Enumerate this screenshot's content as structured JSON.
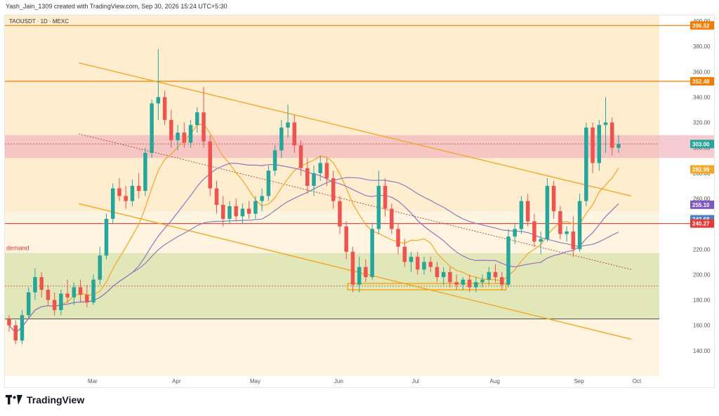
{
  "header": {
    "attribution": "Yash_Jain_1309 created with TradingView.com, Sep 30, 2026 15:24 UTC+5:30"
  },
  "footer": {
    "brand": "TradingView"
  },
  "chart_data": {
    "type": "candlestick",
    "symbol_label": "TAOUSDT · 1D · MEXC",
    "y_ticks": [
      140,
      160,
      180,
      200,
      220,
      240,
      260,
      280,
      300,
      320,
      340,
      360,
      380,
      400
    ],
    "x_ticks": [
      "Mar",
      "Apr",
      "May",
      "Jun",
      "Jul",
      "Aug",
      "Sep",
      "Oct"
    ],
    "zone_label": "demand",
    "price_labels": [
      {
        "value": 396.52,
        "text": "396.52",
        "color": "#f57c00"
      },
      {
        "value": 352.48,
        "text": "352.48",
        "color": "#f57c00"
      },
      {
        "value": 303.0,
        "text": "303.00",
        "color": "#26a69a"
      },
      {
        "value": 282.99,
        "text": "282.99",
        "color": "#f5a623"
      },
      {
        "value": 255.1,
        "text": "255.10",
        "color": "#7e57c2"
      },
      {
        "value": 243.68,
        "text": "243.68",
        "color": "#4f7fbf"
      },
      {
        "value": 240.27,
        "text": "240.27",
        "color": "#e53935"
      }
    ],
    "horizontal_levels": [
      396.52,
      352.48,
      240.27
    ],
    "resistance_zone": [
      292,
      310
    ],
    "demand_zone": [
      165,
      217
    ],
    "dotted_levels": [
      303,
      191
    ],
    "colors": {
      "up": "#26a69a",
      "down": "#ef5350",
      "channel": "#f5a623",
      "level": "#f57c00",
      "support": "#d9534f"
    },
    "candles": [
      {
        "o": 165,
        "h": 168,
        "l": 155,
        "c": 160
      },
      {
        "o": 160,
        "h": 164,
        "l": 145,
        "c": 148
      },
      {
        "o": 148,
        "h": 172,
        "l": 145,
        "c": 168
      },
      {
        "o": 168,
        "h": 190,
        "l": 165,
        "c": 186
      },
      {
        "o": 186,
        "h": 205,
        "l": 180,
        "c": 198
      },
      {
        "o": 198,
        "h": 202,
        "l": 182,
        "c": 188
      },
      {
        "o": 188,
        "h": 192,
        "l": 175,
        "c": 180
      },
      {
        "o": 180,
        "h": 186,
        "l": 168,
        "c": 172
      },
      {
        "o": 172,
        "h": 188,
        "l": 168,
        "c": 185
      },
      {
        "o": 185,
        "h": 196,
        "l": 178,
        "c": 182
      },
      {
        "o": 182,
        "h": 194,
        "l": 176,
        "c": 190
      },
      {
        "o": 190,
        "h": 196,
        "l": 178,
        "c": 184
      },
      {
        "o": 184,
        "h": 192,
        "l": 174,
        "c": 178
      },
      {
        "o": 178,
        "h": 200,
        "l": 176,
        "c": 196
      },
      {
        "o": 196,
        "h": 222,
        "l": 192,
        "c": 215
      },
      {
        "o": 215,
        "h": 248,
        "l": 212,
        "c": 244
      },
      {
        "o": 244,
        "h": 272,
        "l": 240,
        "c": 268
      },
      {
        "o": 268,
        "h": 276,
        "l": 258,
        "c": 262
      },
      {
        "o": 262,
        "h": 270,
        "l": 252,
        "c": 258
      },
      {
        "o": 258,
        "h": 275,
        "l": 254,
        "c": 270
      },
      {
        "o": 270,
        "h": 280,
        "l": 260,
        "c": 266
      },
      {
        "o": 266,
        "h": 300,
        "l": 262,
        "c": 296
      },
      {
        "o": 296,
        "h": 338,
        "l": 292,
        "c": 335
      },
      {
        "o": 335,
        "h": 378,
        "l": 322,
        "c": 340
      },
      {
        "o": 340,
        "h": 345,
        "l": 318,
        "c": 322
      },
      {
        "o": 322,
        "h": 330,
        "l": 300,
        "c": 306
      },
      {
        "o": 306,
        "h": 318,
        "l": 298,
        "c": 312
      },
      {
        "o": 312,
        "h": 320,
        "l": 300,
        "c": 304
      },
      {
        "o": 304,
        "h": 322,
        "l": 300,
        "c": 318
      },
      {
        "o": 318,
        "h": 332,
        "l": 312,
        "c": 328
      },
      {
        "o": 328,
        "h": 348,
        "l": 300,
        "c": 305
      },
      {
        "o": 305,
        "h": 310,
        "l": 262,
        "c": 268
      },
      {
        "o": 268,
        "h": 274,
        "l": 248,
        "c": 255
      },
      {
        "o": 255,
        "h": 262,
        "l": 238,
        "c": 244
      },
      {
        "o": 244,
        "h": 258,
        "l": 240,
        "c": 254
      },
      {
        "o": 254,
        "h": 260,
        "l": 242,
        "c": 246
      },
      {
        "o": 246,
        "h": 256,
        "l": 240,
        "c": 252
      },
      {
        "o": 252,
        "h": 258,
        "l": 244,
        "c": 248
      },
      {
        "o": 248,
        "h": 262,
        "l": 244,
        "c": 258
      },
      {
        "o": 258,
        "h": 268,
        "l": 250,
        "c": 262
      },
      {
        "o": 262,
        "h": 286,
        "l": 258,
        "c": 282
      },
      {
        "o": 282,
        "h": 302,
        "l": 278,
        "c": 298
      },
      {
        "o": 298,
        "h": 322,
        "l": 292,
        "c": 316
      },
      {
        "o": 316,
        "h": 334,
        "l": 308,
        "c": 320
      },
      {
        "o": 320,
        "h": 326,
        "l": 296,
        "c": 302
      },
      {
        "o": 302,
        "h": 306,
        "l": 278,
        "c": 284
      },
      {
        "o": 284,
        "h": 292,
        "l": 264,
        "c": 270
      },
      {
        "o": 270,
        "h": 286,
        "l": 262,
        "c": 280
      },
      {
        "o": 280,
        "h": 294,
        "l": 274,
        "c": 288
      },
      {
        "o": 288,
        "h": 292,
        "l": 270,
        "c": 276
      },
      {
        "o": 276,
        "h": 282,
        "l": 252,
        "c": 258
      },
      {
        "o": 258,
        "h": 262,
        "l": 232,
        "c": 238
      },
      {
        "o": 238,
        "h": 242,
        "l": 212,
        "c": 218
      },
      {
        "o": 218,
        "h": 222,
        "l": 186,
        "c": 192
      },
      {
        "o": 192,
        "h": 214,
        "l": 186,
        "c": 206
      },
      {
        "o": 206,
        "h": 212,
        "l": 194,
        "c": 198
      },
      {
        "o": 198,
        "h": 240,
        "l": 196,
        "c": 236
      },
      {
        "o": 236,
        "h": 282,
        "l": 232,
        "c": 270
      },
      {
        "o": 270,
        "h": 276,
        "l": 246,
        "c": 252
      },
      {
        "o": 252,
        "h": 256,
        "l": 232,
        "c": 236
      },
      {
        "o": 236,
        "h": 240,
        "l": 216,
        "c": 222
      },
      {
        "o": 222,
        "h": 228,
        "l": 206,
        "c": 210
      },
      {
        "o": 210,
        "h": 218,
        "l": 202,
        "c": 214
      },
      {
        "o": 214,
        "h": 218,
        "l": 200,
        "c": 204
      },
      {
        "o": 204,
        "h": 214,
        "l": 200,
        "c": 210
      },
      {
        "o": 210,
        "h": 214,
        "l": 202,
        "c": 206
      },
      {
        "o": 206,
        "h": 210,
        "l": 194,
        "c": 198
      },
      {
        "o": 198,
        "h": 206,
        "l": 192,
        "c": 202
      },
      {
        "o": 202,
        "h": 206,
        "l": 190,
        "c": 194
      },
      {
        "o": 194,
        "h": 200,
        "l": 188,
        "c": 192
      },
      {
        "o": 192,
        "h": 198,
        "l": 188,
        "c": 196
      },
      {
        "o": 196,
        "h": 200,
        "l": 186,
        "c": 190
      },
      {
        "o": 190,
        "h": 198,
        "l": 186,
        "c": 194
      },
      {
        "o": 194,
        "h": 200,
        "l": 190,
        "c": 196
      },
      {
        "o": 196,
        "h": 206,
        "l": 192,
        "c": 202
      },
      {
        "o": 202,
        "h": 208,
        "l": 194,
        "c": 198
      },
      {
        "o": 198,
        "h": 202,
        "l": 188,
        "c": 192
      },
      {
        "o": 192,
        "h": 236,
        "l": 190,
        "c": 230
      },
      {
        "o": 230,
        "h": 240,
        "l": 224,
        "c": 236
      },
      {
        "o": 236,
        "h": 262,
        "l": 232,
        "c": 258
      },
      {
        "o": 258,
        "h": 264,
        "l": 238,
        "c": 242
      },
      {
        "o": 242,
        "h": 248,
        "l": 222,
        "c": 226
      },
      {
        "o": 226,
        "h": 234,
        "l": 216,
        "c": 228
      },
      {
        "o": 228,
        "h": 276,
        "l": 226,
        "c": 270
      },
      {
        "o": 270,
        "h": 274,
        "l": 244,
        "c": 250
      },
      {
        "o": 250,
        "h": 254,
        "l": 228,
        "c": 232
      },
      {
        "o": 232,
        "h": 238,
        "l": 226,
        "c": 234
      },
      {
        "o": 234,
        "h": 246,
        "l": 214,
        "c": 220
      },
      {
        "o": 220,
        "h": 264,
        "l": 218,
        "c": 258
      },
      {
        "o": 258,
        "h": 320,
        "l": 254,
        "c": 316
      },
      {
        "o": 316,
        "h": 320,
        "l": 280,
        "c": 288
      },
      {
        "o": 288,
        "h": 322,
        "l": 282,
        "c": 318
      },
      {
        "o": 318,
        "h": 340,
        "l": 296,
        "c": 320
      },
      {
        "o": 320,
        "h": 324,
        "l": 294,
        "c": 300
      },
      {
        "o": 300,
        "h": 310,
        "l": 296,
        "c": 303
      }
    ]
  }
}
